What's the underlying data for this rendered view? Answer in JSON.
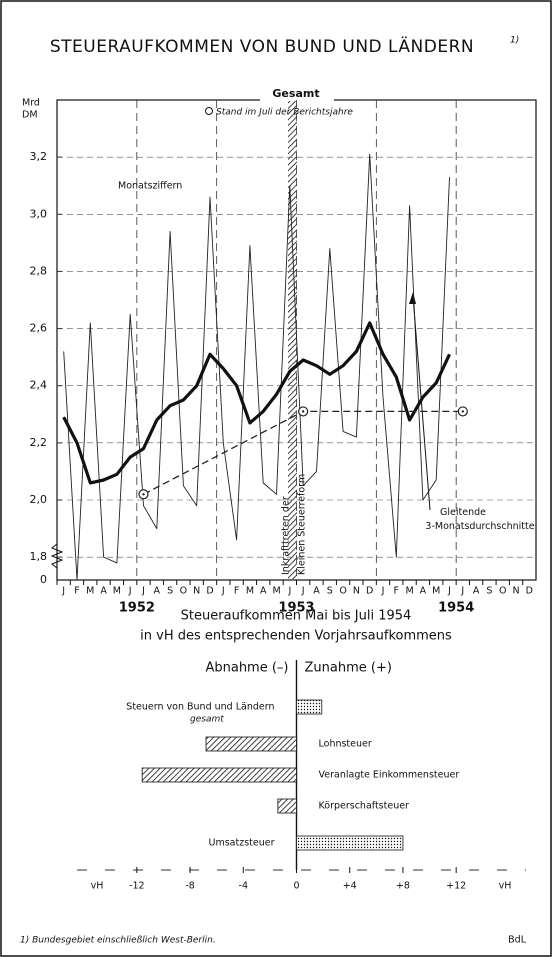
{
  "chart_data": [
    {
      "type": "line",
      "title": "STEUERAUFKOMMEN VON BUND UND LÄNDERN",
      "title_note": "1)",
      "y_unit": [
        "Mrd",
        "DM"
      ],
      "header": "Gesamt",
      "categories": [
        "J",
        "F",
        "M",
        "A",
        "M",
        "J",
        "J",
        "A",
        "S",
        "O",
        "N",
        "D",
        "J",
        "F",
        "M",
        "A",
        "M",
        "J",
        "J",
        "A",
        "S",
        "O",
        "N",
        "D",
        "J",
        "F",
        "M",
        "A",
        "M",
        "J",
        "J",
        "A",
        "S",
        "O",
        "N",
        "D"
      ],
      "years": [
        "1952",
        "1953",
        "1954"
      ],
      "ylim": [
        1.72,
        3.4
      ],
      "axis_break": true,
      "yticks": [
        0,
        {
          "value": 1.8,
          "label": "1,8"
        },
        {
          "value": 2.0,
          "label": "2,0"
        },
        {
          "value": 2.2,
          "label": "2,2"
        },
        {
          "value": 2.4,
          "label": "2,4"
        },
        {
          "value": 2.6,
          "label": "2,6"
        },
        {
          "value": 2.8,
          "label": "2,8"
        },
        {
          "value": 3.0,
          "label": "3,0"
        },
        {
          "value": 3.2,
          "label": "3,2"
        }
      ],
      "grid": true,
      "series": [
        {
          "name": "Monatsziffern",
          "color": "#222222",
          "style": "thin",
          "values": [
            2.52,
            1.72,
            2.62,
            1.8,
            1.78,
            2.65,
            1.98,
            1.9,
            2.94,
            2.05,
            1.98,
            3.06,
            2.2,
            1.86,
            2.89,
            2.06,
            2.02,
            3.1,
            2.05,
            2.1,
            2.88,
            2.24,
            2.22,
            3.21,
            2.36,
            1.8,
            3.03,
            2.0,
            2.07,
            3.13,
            null,
            null,
            null,
            null,
            null,
            null
          ]
        },
        {
          "name": "Gleitende 3-Monatsdurchschnitte",
          "color": "#111111",
          "style": "thick",
          "values": [
            2.29,
            2.2,
            2.06,
            2.07,
            2.09,
            2.15,
            2.18,
            2.28,
            2.33,
            2.35,
            2.4,
            2.51,
            2.46,
            2.4,
            2.27,
            2.31,
            2.37,
            2.45,
            2.49,
            2.47,
            2.44,
            2.47,
            2.52,
            2.62,
            2.51,
            2.43,
            2.28,
            2.36,
            2.41,
            2.51,
            null,
            null,
            null,
            null,
            null,
            null
          ]
        },
        {
          "name": "Stand im Juli der Berichtsjahre",
          "color": "#222222",
          "style": "dashed",
          "markers": true,
          "connect_gaps": true,
          "values": [
            null,
            null,
            null,
            null,
            null,
            null,
            2.02,
            null,
            null,
            null,
            null,
            null,
            null,
            null,
            null,
            null,
            null,
            null,
            2.31,
            null,
            null,
            null,
            null,
            null,
            null,
            null,
            null,
            null,
            null,
            null,
            2.31,
            null,
            null,
            null,
            null,
            null
          ]
        }
      ],
      "annotations": [
        "Inkrafttreten der",
        "Kleinen Steuerreform"
      ]
    },
    {
      "type": "hbar",
      "title": "Steueraufkommen Mai bis Juli 1954",
      "subtitle": "in vH des entsprechenden Vorjahrsaufkommens",
      "left_header": "Abnahme (–)",
      "right_header": "Zunahme (+)",
      "categories": [
        "Steuern von Bund und Ländern",
        "Lohnsteuer",
        "Veranlagte Einkommensteuer",
        "Körperschaftsteuer",
        "Umsatzsteuer"
      ],
      "category_sublabels": [
        "gesamt",
        null,
        null,
        null,
        null
      ],
      "values": [
        1.9,
        -6.8,
        -11.6,
        -1.4,
        8.0
      ],
      "xlim": [
        -18,
        18
      ],
      "x_unit": "vH",
      "xticks": [
        -12,
        -8,
        -4,
        0,
        {
          "value": 4,
          "label": "+4"
        },
        {
          "value": 8,
          "label": "+8"
        },
        {
          "value": 12,
          "label": "+12"
        }
      ]
    }
  ],
  "footnote": "1) Bundesgebiet einschließlich West-Berlin.",
  "source": "BdL"
}
